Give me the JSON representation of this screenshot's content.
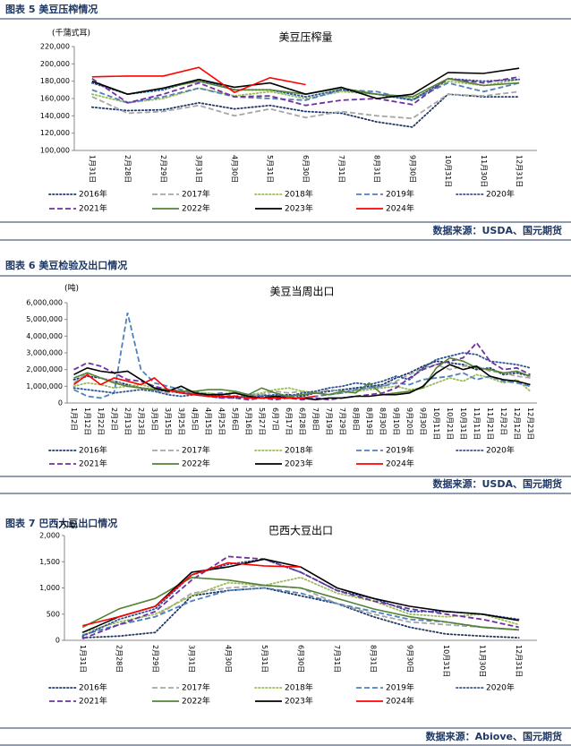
{
  "chart_data": [
    {
      "type": "line",
      "figure_title": "图表 5 美豆压榨情况",
      "source": "数据来源：USDA、国元期货",
      "title": "美豆压榨量",
      "y_unit": "(千蒲式耳)",
      "categories": [
        "1月31日",
        "2月28日",
        "2月29日",
        "3月31日",
        "4月30日",
        "5月31日",
        "6月30日",
        "7月31日",
        "8月31日",
        "9月30日",
        "10月31日",
        "11月30日",
        "12月31日"
      ],
      "ylim": [
        100000,
        220000
      ],
      "yticks": [
        {
          "value": 100000,
          "label": "100,000"
        },
        {
          "value": 120000,
          "label": "120,000"
        },
        {
          "value": 140000,
          "label": "140,000"
        },
        {
          "value": 160000,
          "label": "160,000"
        },
        {
          "value": 180000,
          "label": "180,000"
        },
        {
          "value": 200000,
          "label": "200,000"
        },
        {
          "value": 220000,
          "label": "220,000"
        }
      ],
      "legend": "bottom",
      "series": [
        {
          "name": "2016年",
          "color": "#1f3864",
          "dash": "dotted",
          "values": [
            150000,
            146000,
            147000,
            155000,
            148000,
            152000,
            145000,
            143000,
            133000,
            127000,
            165000,
            162000,
            162000
          ]
        },
        {
          "name": "2017年",
          "color": "#a6a6a6",
          "dash": "dashed",
          "values": [
            162000,
            143000,
            145000,
            152000,
            140000,
            148000,
            138000,
            145000,
            140000,
            137000,
            165000,
            163000,
            168000
          ]
        },
        {
          "name": "2018年",
          "color": "#9bbb59",
          "dash": "dotted",
          "values": [
            165000,
            155000,
            160000,
            172000,
            163000,
            168000,
            160000,
            168000,
            165000,
            160000,
            180000,
            175000,
            182000
          ]
        },
        {
          "name": "2019年",
          "color": "#4f81bd",
          "dash": "dashed",
          "values": [
            170000,
            155000,
            162000,
            172000,
            162000,
            160000,
            158000,
            170000,
            168000,
            158000,
            178000,
            168000,
            178000
          ]
        },
        {
          "name": "2020年",
          "color": "#2e5597",
          "dash": "dotted",
          "values": [
            178000,
            165000,
            170000,
            182000,
            170000,
            170000,
            162000,
            170000,
            165000,
            158000,
            183000,
            180000,
            182000
          ]
        },
        {
          "name": "2021年",
          "color": "#7030a0",
          "dash": "dashed",
          "values": [
            183000,
            155000,
            165000,
            178000,
            162000,
            163000,
            152000,
            158000,
            160000,
            153000,
            183000,
            178000,
            185000
          ]
        },
        {
          "name": "2022年",
          "color": "#548235",
          "dash": "solid",
          "values": [
            180000,
            165000,
            172000,
            180000,
            170000,
            170000,
            165000,
            172000,
            165000,
            162000,
            183000,
            175000,
            178000
          ]
        },
        {
          "name": "2023年",
          "color": "#000000",
          "dash": "solid",
          "values": [
            180000,
            165000,
            172000,
            182000,
            173000,
            178000,
            165000,
            173000,
            160000,
            165000,
            190000,
            189000,
            195000
          ]
        },
        {
          "name": "2024年",
          "color": "#ff0000",
          "dash": "solid",
          "values": [
            185000,
            186000,
            186000,
            196000,
            167000,
            184000,
            176000,
            null,
            null,
            null,
            null,
            null,
            null
          ]
        }
      ]
    },
    {
      "type": "line",
      "figure_title": "图表 6 美豆检验及出口情况",
      "source": "数据来源：USDA、国元期货",
      "title": "美豆当周出口",
      "y_unit": "(吨)",
      "categories": [
        "1月2日",
        "1月12日",
        "1月22日",
        "2月2日",
        "2月13日",
        "2月23日",
        "3月5日",
        "3月15日",
        "3月25日",
        "4月5日",
        "4月15日",
        "4月25日",
        "5月6日",
        "5月16日",
        "5月27日",
        "6月7日",
        "6月17日",
        "6月28日",
        "7月8日",
        "7月19日",
        "7月29日",
        "8月8日",
        "8月19日",
        "8月30日",
        "9月10日",
        "9月20日",
        "9月30日",
        "10月11日",
        "10月21日",
        "10月31日",
        "11月11日",
        "11月21日",
        "12月2日",
        "12月12日",
        "12月23日"
      ],
      "ylim": [
        0,
        6000000
      ],
      "yticks": [
        0,
        {
          "value": 1000000,
          "label": "1,000,000"
        },
        {
          "value": 2000000,
          "label": "2,000,000"
        },
        {
          "value": 3000000,
          "label": "3,000,000"
        },
        {
          "value": 4000000,
          "label": "4,000,000"
        },
        {
          "value": 5000000,
          "label": "5,000,000"
        },
        {
          "value": 6000000,
          "label": "6,000,000"
        }
      ],
      "legend": "bottom",
      "series": [
        {
          "name": "2016年",
          "color": "#1f3864",
          "dash": "dotted",
          "values": [
            1400000,
            1600000,
            1500000,
            1300000,
            1100000,
            900000,
            800000,
            700000,
            600000,
            500000,
            400000,
            400000,
            300000,
            400000,
            500000,
            400000,
            500000,
            400000,
            600000,
            700000,
            800000,
            900000,
            1000000,
            1100000,
            1500000,
            1800000,
            2200000,
            2500000,
            2400000,
            2300000,
            2000000,
            2100000,
            1700000,
            1800000,
            1600000
          ]
        },
        {
          "name": "2017年",
          "color": "#a6a6a6",
          "dash": "dashed",
          "values": [
            1200000,
            1800000,
            1500000,
            1300000,
            1000000,
            900000,
            700000,
            600000,
            700000,
            600000,
            500000,
            500000,
            600000,
            400000,
            500000,
            700000,
            600000,
            700000,
            600000,
            800000,
            700000,
            800000,
            900000,
            1000000,
            1300000,
            1700000,
            2100000,
            2300000,
            2000000,
            2200000,
            2200000,
            1900000,
            1800000,
            1600000,
            1500000
          ]
        },
        {
          "name": "2018年",
          "color": "#9bbb59",
          "dash": "dotted",
          "values": [
            1000000,
            1200000,
            1100000,
            900000,
            1000000,
            1100000,
            900000,
            800000,
            700000,
            600000,
            600000,
            500000,
            700000,
            500000,
            600000,
            800000,
            900000,
            700000,
            600000,
            500000,
            600000,
            700000,
            800000,
            900000,
            1000000,
            800000,
            900000,
            1200000,
            1500000,
            1300000,
            1700000,
            1500000,
            1200000,
            1400000,
            700000
          ]
        },
        {
          "name": "2019年",
          "color": "#4f81bd",
          "dash": "dashed",
          "values": [
            800000,
            400000,
            300000,
            600000,
            5400000,
            2000000,
            1200000,
            1000000,
            800000,
            700000,
            500000,
            600000,
            400000,
            500000,
            400000,
            300000,
            400000,
            300000,
            400000,
            500000,
            600000,
            800000,
            900000,
            1000000,
            1200000,
            1100000,
            1400000,
            1500000,
            1600000,
            1800000,
            1400000,
            1600000,
            1300000,
            1200000,
            1000000
          ]
        },
        {
          "name": "2020年",
          "color": "#2e5597",
          "dash": "dotted",
          "values": [
            900000,
            800000,
            700000,
            600000,
            700000,
            800000,
            700000,
            500000,
            400000,
            500000,
            400000,
            300000,
            400000,
            300000,
            400000,
            500000,
            400000,
            600000,
            700000,
            900000,
            1000000,
            1200000,
            1100000,
            1300000,
            1600000,
            1400000,
            2100000,
            2600000,
            2800000,
            3000000,
            2900000,
            2500000,
            2400000,
            2300000,
            2100000
          ]
        },
        {
          "name": "2021年",
          "color": "#7030a0",
          "dash": "dashed",
          "values": [
            2000000,
            2400000,
            2200000,
            1800000,
            1400000,
            1300000,
            1000000,
            800000,
            700000,
            500000,
            400000,
            300000,
            300000,
            200000,
            300000,
            200000,
            300000,
            200000,
            300000,
            200000,
            300000,
            400000,
            500000,
            600000,
            900000,
            1500000,
            2000000,
            2300000,
            2500000,
            2700000,
            3600000,
            2500000,
            2000000,
            2100000,
            1700000
          ]
        },
        {
          "name": "2022年",
          "color": "#548235",
          "dash": "solid",
          "values": [
            1500000,
            1800000,
            1500000,
            1200000,
            1000000,
            900000,
            800000,
            800000,
            700000,
            700000,
            800000,
            800000,
            700000,
            500000,
            900000,
            600000,
            400000,
            500000,
            600000,
            500000,
            700000,
            600000,
            1200000,
            500000,
            600000,
            700000,
            900000,
            2100000,
            2700000,
            2500000,
            2100000,
            2000000,
            1800000,
            1900000,
            1600000
          ]
        },
        {
          "name": "2023年",
          "color": "#000000",
          "dash": "solid",
          "values": [
            1700000,
            2100000,
            1900000,
            1800000,
            1900000,
            1400000,
            900000,
            700000,
            1000000,
            600000,
            500000,
            500000,
            600000,
            400000,
            300000,
            400000,
            300000,
            300000,
            200000,
            300000,
            300000,
            400000,
            400000,
            500000,
            500000,
            600000,
            1000000,
            1800000,
            2300000,
            2000000,
            2200000,
            1600000,
            1400000,
            1300000,
            1100000
          ]
        },
        {
          "name": "2024年",
          "color": "#ff0000",
          "dash": "solid",
          "values": [
            1100000,
            1700000,
            1100000,
            1500000,
            1300000,
            1100000,
            1500000,
            800000,
            600000,
            500000,
            400000,
            400000,
            400000,
            300000,
            300000,
            300000,
            300000,
            300000,
            400000,
            null,
            null,
            null,
            null,
            null,
            null,
            null,
            null,
            null,
            null,
            null,
            null,
            null,
            null,
            null,
            null
          ]
        }
      ]
    },
    {
      "type": "line",
      "figure_title": "图表 7 巴西大豆出口情况",
      "source": "数据来源：Abiove、国元期货",
      "title": "巴西大豆出口",
      "y_unit": "(万吨)",
      "categories": [
        "1月31日",
        "2月28日",
        "2月29日",
        "3月31日",
        "4月30日",
        "5月31日",
        "6月30日",
        "7月31日",
        "8月31日",
        "9月30日",
        "10月31日",
        "11月30日",
        "12月31日"
      ],
      "ylim": [
        0,
        2000
      ],
      "yticks": [
        0,
        500,
        {
          "value": 1000,
          "label": "1,000"
        },
        {
          "value": 1500,
          "label": "1,500"
        },
        {
          "value": 2000,
          "label": "2,000"
        }
      ],
      "legend": "bottom",
      "series": [
        {
          "name": "2016年",
          "color": "#1f3864",
          "dash": "dotted",
          "values": [
            50,
            80,
            150,
            850,
            950,
            1000,
            850,
            700,
            450,
            250,
            120,
            80,
            50
          ]
        },
        {
          "name": "2017年",
          "color": "#a6a6a6",
          "dash": "dashed",
          "values": [
            100,
            300,
            450,
            900,
            1000,
            1050,
            1000,
            700,
            500,
            350,
            300,
            250,
            200
          ]
        },
        {
          "name": "2018年",
          "color": "#9bbb59",
          "dash": "dotted",
          "values": [
            150,
            350,
            500,
            850,
            1100,
            1050,
            1200,
            900,
            750,
            500,
            450,
            500,
            300
          ]
        },
        {
          "name": "2019年",
          "color": "#4f81bd",
          "dash": "dashed",
          "values": [
            100,
            300,
            450,
            750,
            950,
            1000,
            900,
            700,
            550,
            400,
            350,
            250,
            200
          ]
        },
        {
          "name": "2020年",
          "color": "#2e5597",
          "dash": "dotted",
          "values": [
            80,
            400,
            600,
            1250,
            1450,
            1550,
            1300,
            950,
            800,
            550,
            550,
            500,
            400
          ]
        },
        {
          "name": "2021年",
          "color": "#7030a0",
          "dash": "dashed",
          "values": [
            30,
            300,
            550,
            1150,
            1600,
            1550,
            1300,
            950,
            750,
            600,
            500,
            400,
            250
          ]
        },
        {
          "name": "2022年",
          "color": "#548235",
          "dash": "solid",
          "values": [
            250,
            600,
            800,
            1200,
            1150,
            1050,
            1000,
            800,
            600,
            450,
            350,
            250,
            200
          ]
        },
        {
          "name": "2023年",
          "color": "#000000",
          "dash": "solid",
          "values": [
            150,
            450,
            650,
            1300,
            1400,
            1550,
            1400,
            1000,
            800,
            650,
            550,
            500,
            380
          ]
        },
        {
          "name": "2024年",
          "color": "#ff0000",
          "dash": "solid",
          "values": [
            280,
            450,
            650,
            1250,
            1480,
            1420,
            1400,
            null,
            null,
            null,
            null,
            null,
            null
          ]
        }
      ]
    }
  ]
}
